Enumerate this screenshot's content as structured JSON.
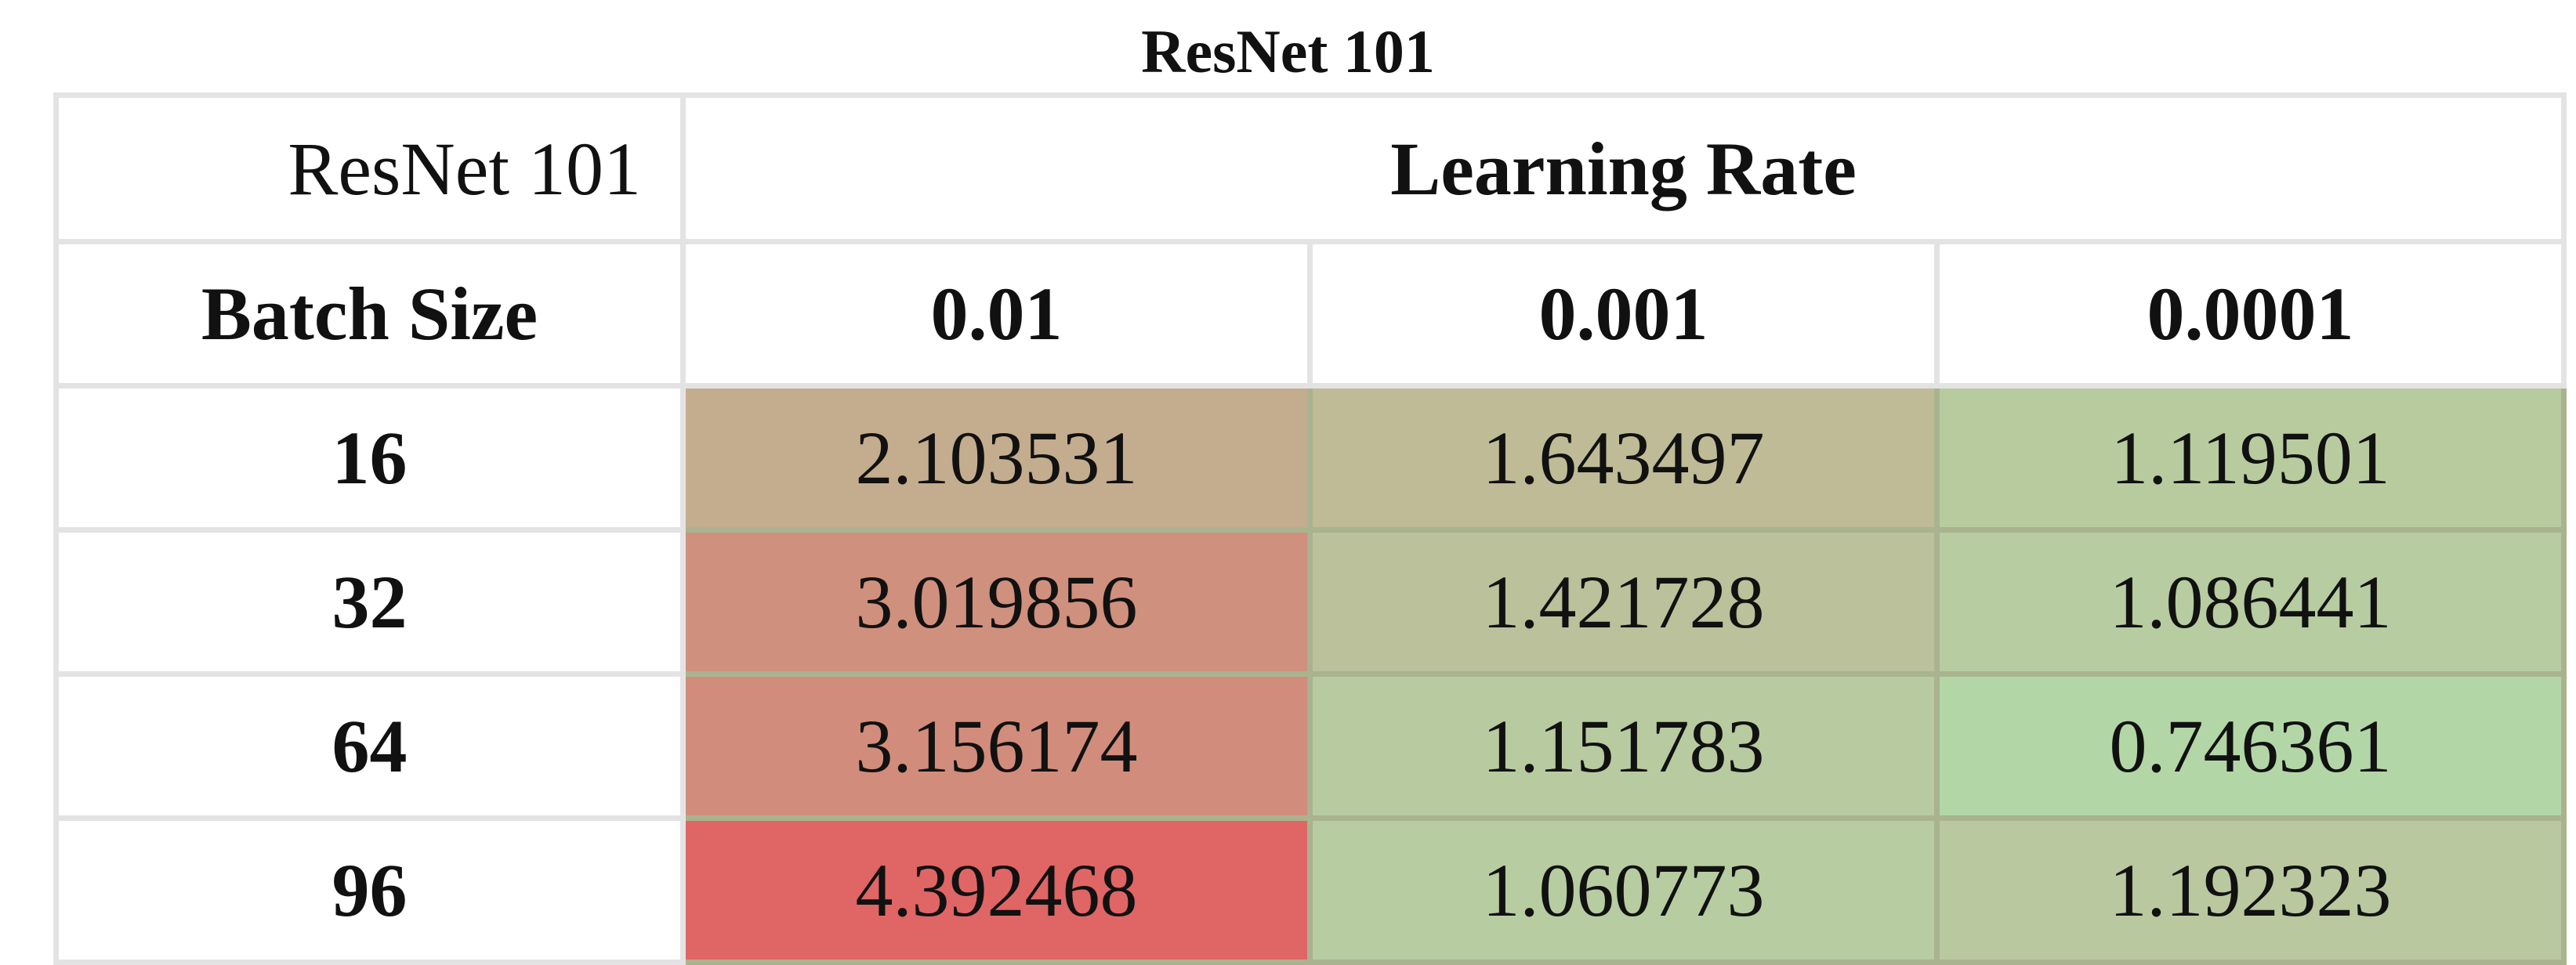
{
  "title": "ResNet 101",
  "chart_data": {
    "type": "heatmap",
    "title": "ResNet 101",
    "corner_label": "ResNet 101",
    "column_group_label": "Learning Rate",
    "row_header_label": "Batch Size",
    "columns": [
      "0.01",
      "0.001",
      "0.0001"
    ],
    "rows": [
      "16",
      "32",
      "64",
      "96"
    ],
    "values": [
      [
        2.103531,
        1.643497,
        1.119501
      ],
      [
        3.019856,
        1.421728,
        1.086441
      ],
      [
        3.156174,
        1.151783,
        0.746361
      ],
      [
        4.392468,
        1.060773,
        1.192323
      ]
    ],
    "value_labels": [
      [
        "2.103531",
        "1.643497",
        "1.119501"
      ],
      [
        "3.019856",
        "1.421728",
        "1.086441"
      ],
      [
        "3.156174",
        "1.151783",
        "0.746361"
      ],
      [
        "4.392468",
        "1.060773",
        "1.192323"
      ]
    ],
    "color_scale": {
      "low": "#b3d6a6",
      "mid": "#c3af8f",
      "high": "#e06565"
    }
  }
}
